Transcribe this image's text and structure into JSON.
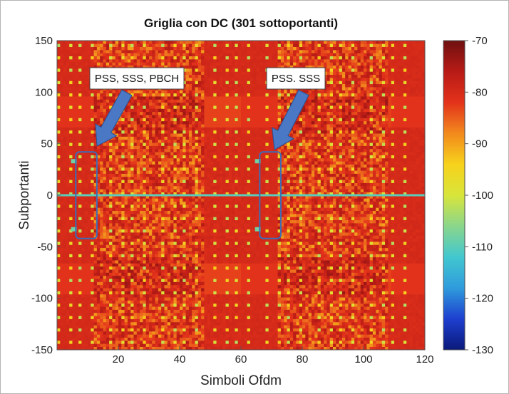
{
  "chart_data": {
    "type": "heatmap",
    "title": "Griglia con DC (301 sottoportanti)",
    "xlabel": "Simboli Ofdm",
    "ylabel": "Subportanti",
    "xlim": [
      0,
      120
    ],
    "ylim": [
      -150,
      150
    ],
    "xticks": [
      "20",
      "40",
      "60",
      "80",
      "100",
      "120"
    ],
    "yticks": [
      "150",
      "100",
      "50",
      "0",
      "-50",
      "-100",
      "-150"
    ],
    "colorbar": {
      "min": -130,
      "max": -70,
      "ticks": [
        "-70",
        "-80",
        "-90",
        "-100",
        "-110",
        "-120",
        "-130"
      ],
      "colormap": [
        "#0a1a7a",
        "#1e3fcf",
        "#2f9bdc",
        "#42c7cf",
        "#8ad68c",
        "#d8e53a",
        "#f7d21c",
        "#f2891c",
        "#e3321b",
        "#b81b16",
        "#6e1010"
      ]
    },
    "background_level_dbm": -80,
    "dc_subcarrier": {
      "subcarrier": 0,
      "level_dbm": -110
    },
    "low_energy_symbol_bands": [
      [
        1,
        12
      ],
      [
        61,
        72
      ],
      [
        110,
        120
      ]
    ],
    "data_symbol_bands": [
      [
        13,
        48
      ],
      [
        73,
        108
      ]
    ],
    "pilot_symbols": [
      1,
      5,
      8,
      12,
      18,
      22,
      25,
      29,
      35,
      39,
      42,
      46,
      52,
      56,
      59,
      63,
      69,
      73,
      76,
      80,
      86,
      90,
      93,
      97,
      103,
      107,
      110,
      114
    ],
    "annotations": [
      {
        "label": "PSS, SSS, PBCH",
        "box_x": [
          1,
          13
        ],
        "box_y": [
          -42,
          42
        ]
      },
      {
        "label": "PSS. SSS",
        "box_x": [
          61,
          73
        ],
        "box_y": [
          -42,
          42
        ]
      }
    ],
    "colors": {
      "frame": "#2e6cb5",
      "arrow": "#4a78c4",
      "arrow_edge": "#2a4f8f",
      "box": "#3a6db8"
    }
  }
}
